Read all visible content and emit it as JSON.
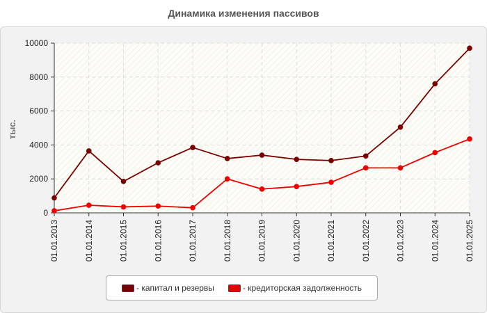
{
  "chart_data": {
    "type": "line",
    "title": "Динамика изменения пассивов",
    "ylabel": "тыс.",
    "xlabel": "",
    "ylim": [
      0,
      10000
    ],
    "yticks": [
      0,
      2000,
      4000,
      6000,
      8000,
      10000
    ],
    "grid": true,
    "legend_position": "bottom",
    "categories": [
      "01.01.2013",
      "01.01.2014",
      "01.01.2015",
      "01.01.2016",
      "01.01.2017",
      "01.01.2018",
      "01.01.2019",
      "01.01.2020",
      "01.01.2021",
      "01.01.2022",
      "01.01.2023",
      "01.01.2024",
      "01.01.2025"
    ],
    "series": [
      {
        "name": "капитал и резервы",
        "legend_label": "- капитал и резервы",
        "color": "#7a0000",
        "values": [
          880,
          3650,
          1850,
          2950,
          3850,
          3200,
          3400,
          3150,
          3080,
          3350,
          5050,
          7600,
          9700
        ]
      },
      {
        "name": "кредиторская задолженность",
        "legend_label": "- кредиторская задолженность",
        "color": "#ee0000",
        "values": [
          120,
          450,
          350,
          400,
          300,
          2000,
          1400,
          1550,
          1800,
          2650,
          2650,
          3550,
          4350
        ]
      }
    ]
  }
}
